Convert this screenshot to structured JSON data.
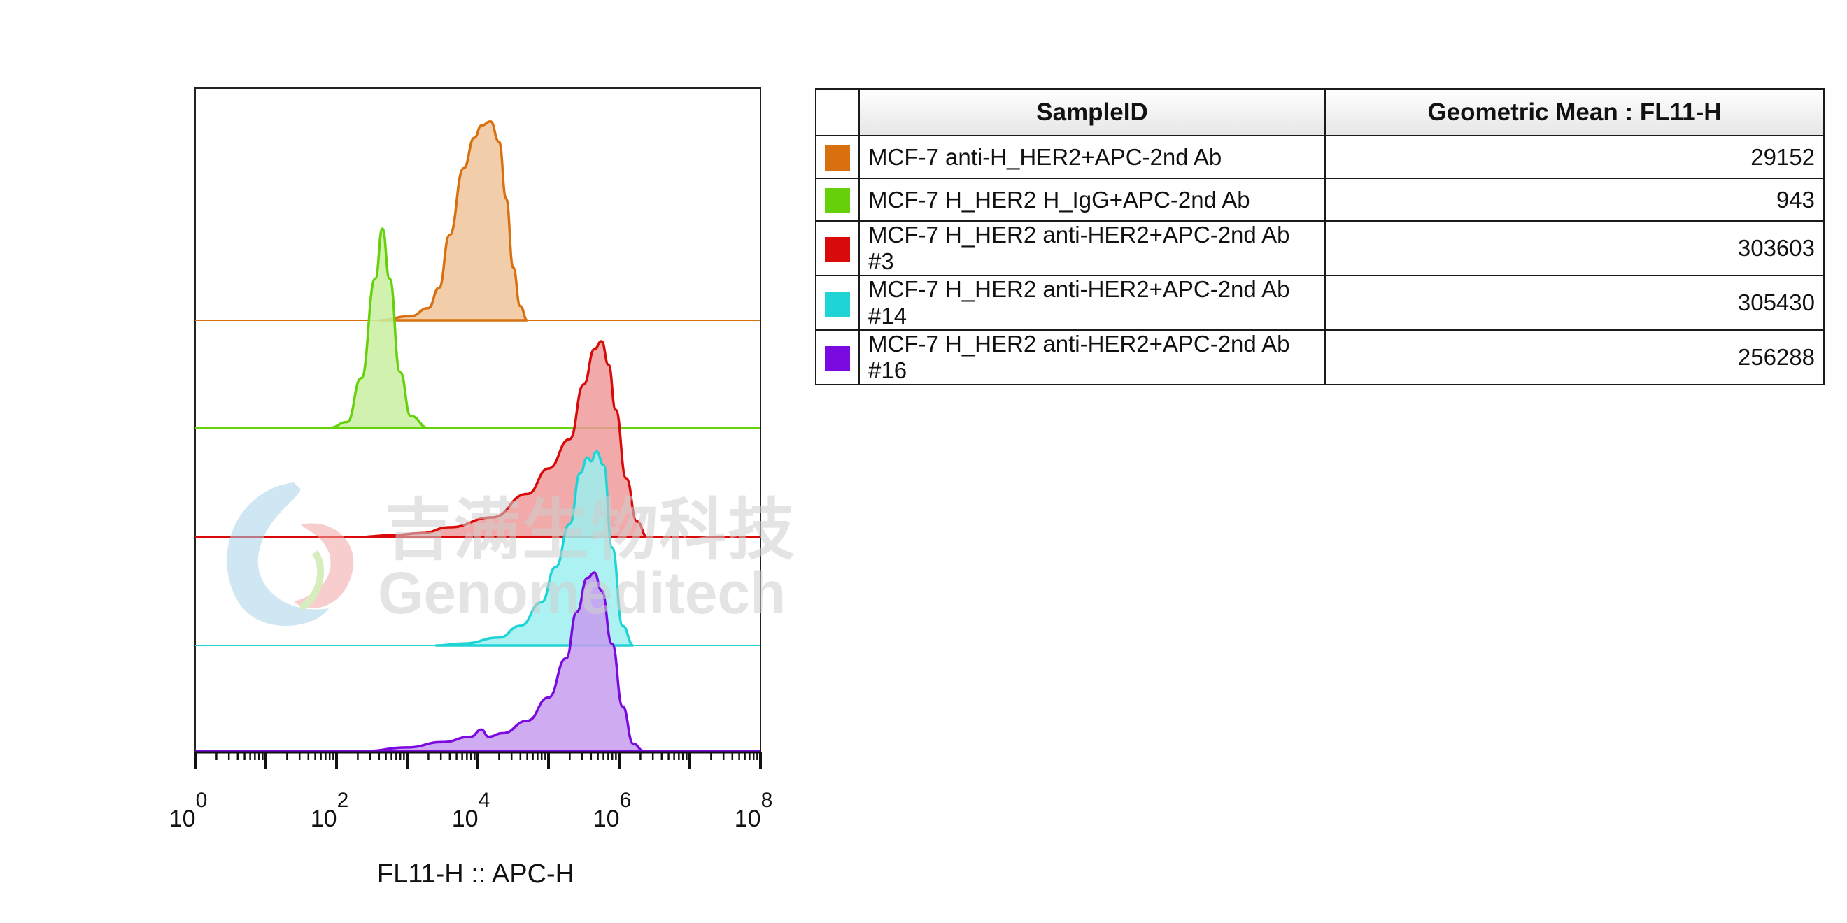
{
  "chart_data": {
    "type": "histogram-overlay",
    "xlabel": "FL11-H :: APC-H",
    "x_scale": "log",
    "xlim": [
      1,
      100000000
    ],
    "x_ticks": [
      {
        "base": "10",
        "exp": "0",
        "value": 1
      },
      {
        "base": "10",
        "exp": "2",
        "value": 100
      },
      {
        "base": "10",
        "exp": "4",
        "value": 10000
      },
      {
        "base": "10",
        "exp": "6",
        "value": 1000000
      },
      {
        "base": "10",
        "exp": "8",
        "value": 100000000
      }
    ],
    "series": [
      {
        "name": "MCF-7 anti-H_HER2+APC-2nd Ab",
        "color": "#d9700f",
        "fill": "#f0c49a",
        "geometric_mean": "29152",
        "peak_x": 29152
      },
      {
        "name": "MCF-7 H_HER2 H_IgG+APC-2nd Ab",
        "color": "#66d10a",
        "fill": "#c9f0a0",
        "geometric_mean": "943",
        "peak_x": 943
      },
      {
        "name": "MCF-7 H_HER2 anti-HER2+APC-2nd Ab #3",
        "color": "#d80a0a",
        "fill": "#ef9a9a",
        "geometric_mean": "303603",
        "peak_x": 420000
      },
      {
        "name": "MCF-7 H_HER2 anti-HER2+APC-2nd Ab #14",
        "color": "#1fd4d4",
        "fill": "#9ef0f0",
        "geometric_mean": "305430",
        "peak_x": 320000
      },
      {
        "name": "MCF-7 H_HER2 anti-HER2+APC-2nd Ab #16",
        "color": "#7a0ae0",
        "fill": "#c79ef0",
        "geometric_mean": "256288",
        "peak_x": 380000
      }
    ]
  },
  "legend_table": {
    "col_sample": "SampleID",
    "col_value": "Geometric Mean : FL11-H"
  },
  "watermark": {
    "cn_text": "吉满生物科技",
    "en_text": "Genomeditech"
  }
}
